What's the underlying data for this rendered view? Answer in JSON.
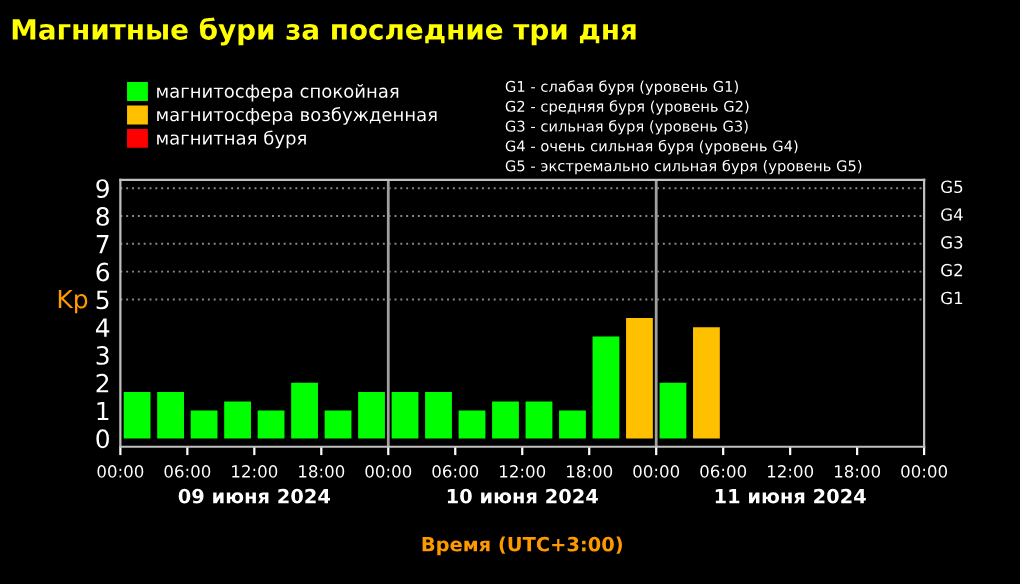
{
  "chart_data": {
    "type": "bar",
    "title": "Магнитные бури за последние три дня",
    "xlabel": "Время (UTC+3:00)",
    "ylabel": "Kp",
    "x": [
      "2024-06-09T01:30",
      "2024-06-09T04:30",
      "2024-06-09T07:30",
      "2024-06-09T10:30",
      "2024-06-09T13:30",
      "2024-06-09T16:30",
      "2024-06-09T19:30",
      "2024-06-09T22:30",
      "2024-06-10T01:30",
      "2024-06-10T04:30",
      "2024-06-10T07:30",
      "2024-06-10T10:30",
      "2024-06-10T13:30",
      "2024-06-10T16:30",
      "2024-06-10T19:30",
      "2024-06-10T22:30",
      "2024-06-11T01:30",
      "2024-06-11T04:30"
    ],
    "series": [
      {
        "name": "магнитосфера спокойная",
        "color": "#00ff00",
        "values": [
          1.67,
          1.67,
          1,
          1.33,
          1,
          2,
          1,
          1.67,
          1.67,
          1.67,
          1,
          1.33,
          1.33,
          1,
          3.67,
          null,
          2,
          null
        ]
      },
      {
        "name": "магнитосфера возбужденная",
        "color": "#ffc000",
        "values": [
          null,
          null,
          null,
          null,
          null,
          null,
          null,
          null,
          null,
          null,
          null,
          null,
          null,
          null,
          null,
          4.33,
          null,
          4
        ]
      },
      {
        "name": "магнитная буря",
        "color": "#ff0000",
        "values": [
          null,
          null,
          null,
          null,
          null,
          null,
          null,
          null,
          null,
          null,
          null,
          null,
          null,
          null,
          null,
          null,
          null,
          null
        ]
      }
    ],
    "xlim": [
      "2024-06-09T00:00",
      "2024-06-12T00:00"
    ],
    "xticks": [
      {
        "value": "2024-06-09T00:00",
        "label": "00:00"
      },
      {
        "value": "2024-06-09T06:00",
        "label": "06:00"
      },
      {
        "value": "2024-06-09T12:00",
        "label": "12:00"
      },
      {
        "value": "2024-06-09T18:00",
        "label": "18:00"
      },
      {
        "value": "2024-06-10T00:00",
        "label": "00:00"
      },
      {
        "value": "2024-06-10T06:00",
        "label": "06:00"
      },
      {
        "value": "2024-06-10T12:00",
        "label": "12:00"
      },
      {
        "value": "2024-06-10T18:00",
        "label": "18:00"
      },
      {
        "value": "2024-06-11T00:00",
        "label": "00:00"
      },
      {
        "value": "2024-06-11T06:00",
        "label": "06:00"
      },
      {
        "value": "2024-06-11T12:00",
        "label": "12:00"
      },
      {
        "value": "2024-06-11T18:00",
        "label": "18:00"
      },
      {
        "value": "2024-06-12T00:00",
        "label": "00:00"
      }
    ],
    "ylim": [
      -0.3,
      9.3
    ],
    "yticks": [
      0,
      1,
      2,
      3,
      4,
      5,
      6,
      7,
      8,
      9
    ],
    "ref_lines": [
      {
        "axis": "x",
        "value": "2024-06-10T00:00",
        "color": "#a0a0a0"
      },
      {
        "axis": "x",
        "value": "2024-06-11T00:00",
        "color": "#a0a0a0"
      },
      {
        "axis": "y",
        "value": 5,
        "label": "G1",
        "color": "#888888",
        "line_style": "dotted"
      },
      {
        "axis": "y",
        "value": 6,
        "label": "G2",
        "color": "#888888",
        "line_style": "dotted"
      },
      {
        "axis": "y",
        "value": 7,
        "label": "G3",
        "color": "#888888",
        "line_style": "dotted"
      },
      {
        "axis": "y",
        "value": 8,
        "label": "G4",
        "color": "#888888",
        "line_style": "dotted"
      },
      {
        "axis": "y",
        "value": 9,
        "label": "G5",
        "color": "#888888",
        "line_style": "dotted"
      }
    ],
    "legend": "top left",
    "annotations": [
      "09 июня 2024",
      "10 июня 2024",
      "11 июня 2024",
      "G1 - слабая буря (уровень G1)",
      "G2 - средняя буря (уровень G2)",
      "G3 - сильная буря (уровень G3)",
      "G4 - очень сильная буря (уровень G4)",
      "G5 - экстремально сильная буря (уровень G5)"
    ]
  }
}
